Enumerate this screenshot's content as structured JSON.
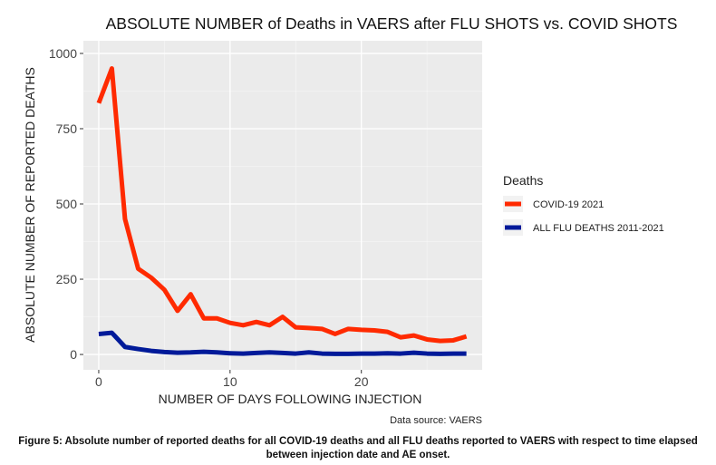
{
  "chart_data": {
    "type": "line",
    "title": "ABSOLUTE NUMBER of Deaths in VAERS after FLU SHOTS vs. COVID SHOTS",
    "xlabel": "NUMBER OF DAYS FOLLOWING INJECTION",
    "ylabel": "ABSOLUTE NUMBER OF REPORTED DEATHS",
    "xlim": [
      -1.17,
      29.2
    ],
    "ylim": [
      -51,
      1042
    ],
    "xticks": [
      0,
      10,
      20
    ],
    "yticks": [
      0,
      250,
      500,
      750,
      1000
    ],
    "grid": true,
    "legend": {
      "title": "Deaths",
      "placement": "right"
    },
    "x": [
      0,
      1,
      2,
      3,
      4,
      5,
      6,
      7,
      8,
      9,
      10,
      11,
      12,
      13,
      14,
      15,
      16,
      17,
      18,
      19,
      20,
      21,
      22,
      23,
      24,
      25,
      26,
      27,
      28
    ],
    "series": [
      {
        "name": "COVID-19 2021",
        "color": "#ff2a00",
        "values": [
          835,
          950,
          450,
          285,
          255,
          215,
          145,
          200,
          120,
          120,
          105,
          97,
          108,
          97,
          125,
          90,
          88,
          85,
          68,
          85,
          82,
          80,
          75,
          57,
          63,
          50,
          45,
          47,
          60
        ]
      },
      {
        "name": "ALL FLU DEATHS 2011-2021",
        "color": "#001a99",
        "values": [
          68,
          72,
          25,
          18,
          12,
          8,
          6,
          7,
          9,
          7,
          4,
          3,
          5,
          7,
          5,
          3,
          7,
          3,
          2,
          2,
          3,
          3,
          4,
          3,
          6,
          3,
          2,
          3,
          3
        ]
      }
    ],
    "source": "Data source: VAERS"
  },
  "caption": "Figure 5: Absolute number of reported deaths  for all COVID-19 deaths and all FLU deaths reported to VAERS with respect to time elapsed between injection date and AE onset."
}
